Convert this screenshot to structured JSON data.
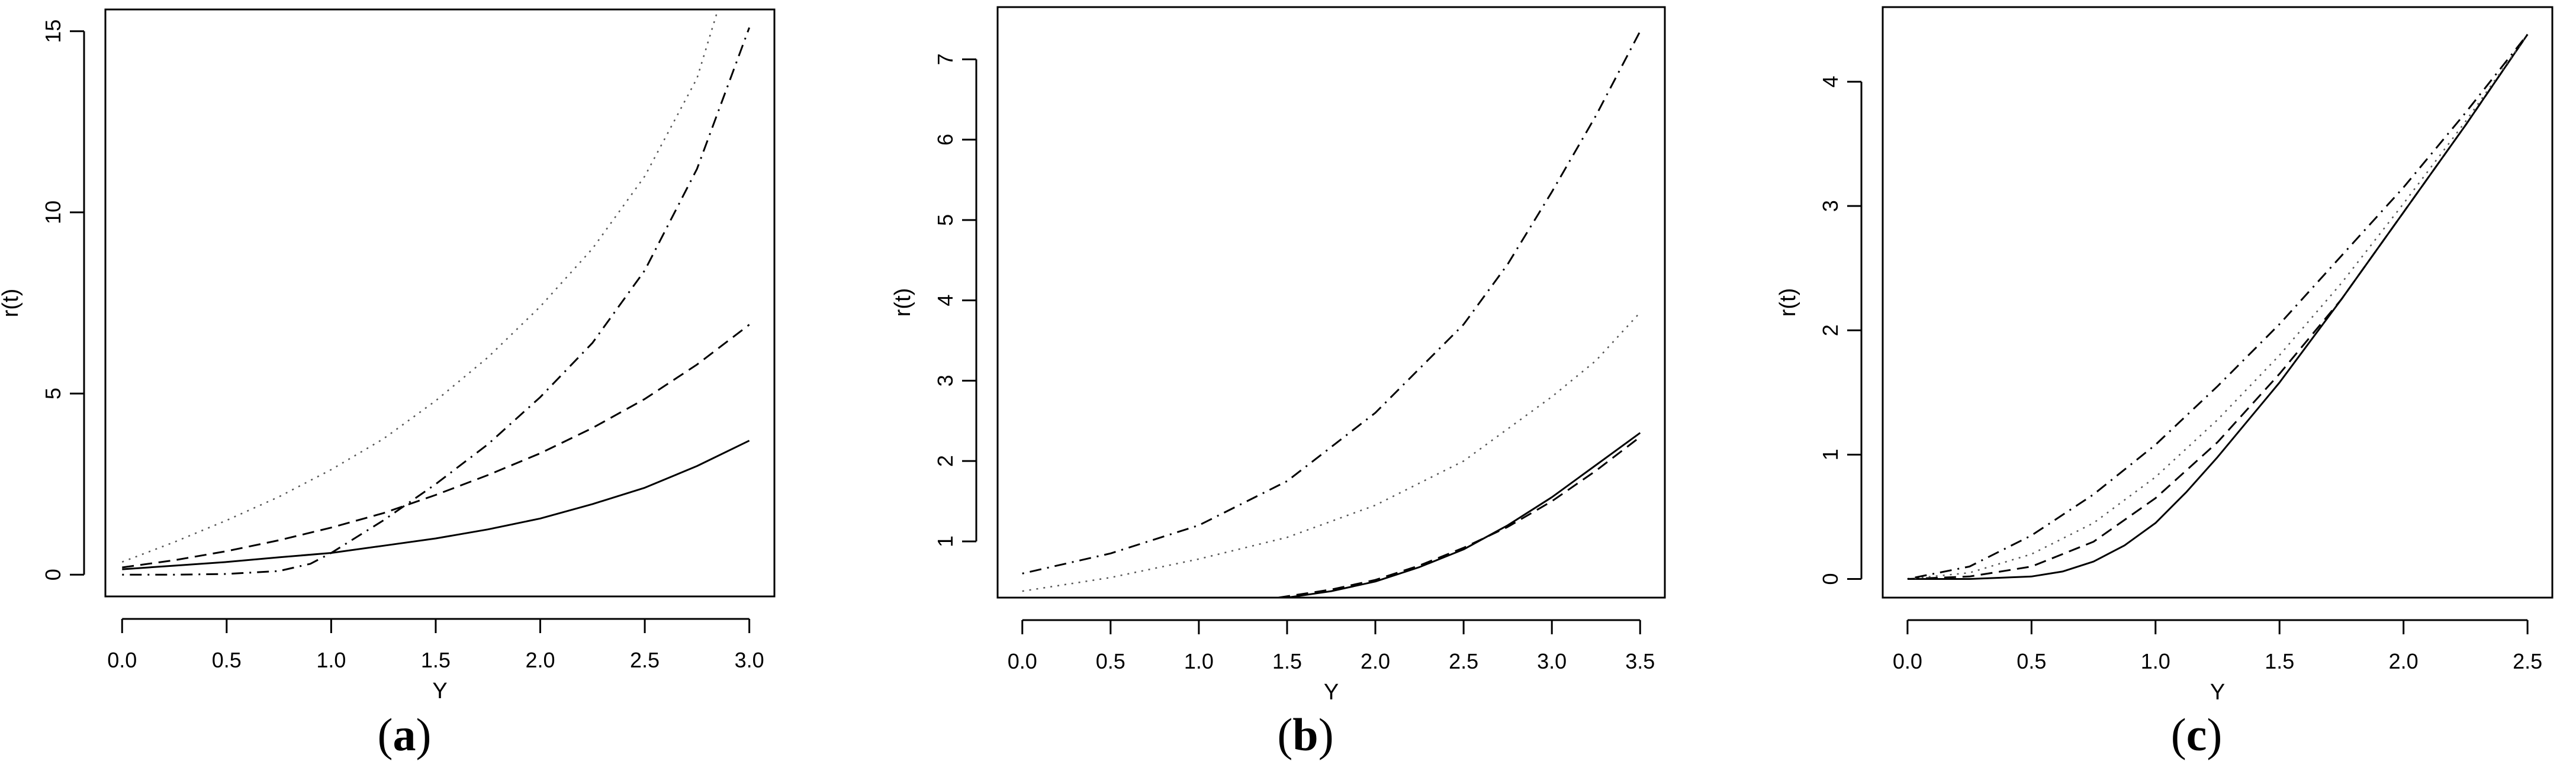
{
  "figure": {
    "panels": [
      {
        "caption_open": "(",
        "caption_letter": "a",
        "caption_close": ")"
      },
      {
        "caption_open": "(",
        "caption_letter": "b",
        "caption_close": ")"
      },
      {
        "caption_open": "(",
        "caption_letter": "c",
        "caption_close": ")"
      }
    ]
  },
  "chart_data": [
    {
      "type": "line",
      "xlabel": "Y",
      "ylabel": "r(t)",
      "xlim": [
        -0.08,
        3.12
      ],
      "ylim": [
        -0.6,
        15.6
      ],
      "xticks": [
        0,
        0.5,
        1,
        1.5,
        2,
        2.5,
        3
      ],
      "xtick_labels": [
        "0.0",
        "0.5",
        "1.0",
        "1.5",
        "2.0",
        "2.5",
        "3.0"
      ],
      "yticks": [
        0,
        5,
        10,
        15
      ],
      "ytick_labels": [
        "0",
        "5",
        "10",
        "15"
      ],
      "series": [
        {
          "style": "solid",
          "x": [
            0,
            0.25,
            0.5,
            0.75,
            1,
            1.25,
            1.5,
            1.75,
            2,
            2.25,
            2.5,
            2.75,
            3
          ],
          "y": [
            0.15,
            0.25,
            0.35,
            0.48,
            0.6,
            0.8,
            1.0,
            1.25,
            1.55,
            1.95,
            2.4,
            3.0,
            3.7
          ]
        },
        {
          "style": "dashed",
          "x": [
            0,
            0.25,
            0.5,
            0.75,
            1,
            1.25,
            1.5,
            1.75,
            2,
            2.25,
            2.5,
            2.75,
            3
          ],
          "y": [
            0.2,
            0.4,
            0.65,
            0.95,
            1.3,
            1.7,
            2.2,
            2.75,
            3.35,
            4.05,
            4.85,
            5.8,
            6.9
          ]
        },
        {
          "style": "dotted",
          "x": [
            0,
            0.25,
            0.5,
            0.75,
            1,
            1.25,
            1.5,
            1.75,
            2,
            2.25,
            2.5,
            2.75,
            2.85
          ],
          "y": [
            0.35,
            0.9,
            1.5,
            2.15,
            2.9,
            3.75,
            4.8,
            6.0,
            7.4,
            9.0,
            11.0,
            13.7,
            15.6
          ]
        },
        {
          "style": "dotdash",
          "x": [
            0,
            0.25,
            0.5,
            0.75,
            0.9,
            1,
            1.25,
            1.5,
            1.75,
            2,
            2.25,
            2.5,
            2.75,
            3
          ],
          "y": [
            0.0,
            0.0,
            0.02,
            0.1,
            0.3,
            0.6,
            1.5,
            2.5,
            3.6,
            4.9,
            6.4,
            8.4,
            11.2,
            15.1
          ]
        }
      ]
    },
    {
      "type": "line",
      "xlabel": "Y",
      "ylabel": "r(t)",
      "xlim": [
        -0.14,
        3.64
      ],
      "ylim": [
        0.3,
        7.65
      ],
      "xticks": [
        0,
        0.5,
        1,
        1.5,
        2,
        2.5,
        3,
        3.5
      ],
      "xtick_labels": [
        "0.0",
        "0.5",
        "1.0",
        "1.5",
        "2.0",
        "2.5",
        "3.0",
        "3.5"
      ],
      "yticks": [
        1,
        2,
        3,
        4,
        5,
        6,
        7
      ],
      "ytick_labels": [
        "1",
        "2",
        "3",
        "4",
        "5",
        "6",
        "7"
      ],
      "series": [
        {
          "style": "solid",
          "x": [
            1.5,
            1.75,
            2,
            2.25,
            2.5,
            2.75,
            3,
            3.25,
            3.5
          ],
          "y": [
            0.3,
            0.38,
            0.5,
            0.68,
            0.9,
            1.2,
            1.55,
            1.95,
            2.35
          ]
        },
        {
          "style": "dashed",
          "x": [
            1.45,
            1.75,
            2,
            2.25,
            2.5,
            2.75,
            3,
            3.25,
            3.5
          ],
          "y": [
            0.3,
            0.4,
            0.52,
            0.7,
            0.92,
            1.18,
            1.5,
            1.88,
            2.3
          ]
        },
        {
          "style": "dotted",
          "x": [
            0,
            0.5,
            1,
            1.5,
            2,
            2.5,
            3,
            3.25,
            3.5
          ],
          "y": [
            0.38,
            0.55,
            0.78,
            1.05,
            1.45,
            2.0,
            2.8,
            3.25,
            3.85
          ]
        },
        {
          "style": "dotdash",
          "x": [
            0,
            0.5,
            1,
            1.5,
            2,
            2.5,
            2.75,
            3,
            3.25,
            3.5
          ],
          "y": [
            0.6,
            0.85,
            1.2,
            1.75,
            2.6,
            3.7,
            4.45,
            5.35,
            6.3,
            7.35
          ]
        }
      ]
    },
    {
      "type": "line",
      "xlabel": "Y",
      "ylabel": "r(t)",
      "xlim": [
        -0.1,
        2.6
      ],
      "ylim": [
        -0.15,
        4.6
      ],
      "xticks": [
        0,
        0.5,
        1,
        1.5,
        2,
        2.5
      ],
      "xtick_labels": [
        "0.0",
        "0.5",
        "1.0",
        "1.5",
        "2.0",
        "2.5"
      ],
      "yticks": [
        0,
        1,
        2,
        3,
        4
      ],
      "ytick_labels": [
        "0",
        "1",
        "2",
        "3",
        "4"
      ],
      "series": [
        {
          "style": "solid",
          "x": [
            0,
            0.25,
            0.5,
            0.625,
            0.75,
            0.875,
            1,
            1.125,
            1.25,
            1.5,
            1.75,
            2,
            2.25,
            2.5
          ],
          "y": [
            0.0,
            0.0,
            0.02,
            0.06,
            0.14,
            0.27,
            0.45,
            0.7,
            0.98,
            1.58,
            2.25,
            2.95,
            3.65,
            4.38
          ]
        },
        {
          "style": "dashed",
          "x": [
            0,
            0.25,
            0.5,
            0.75,
            1,
            1.25,
            1.5,
            1.75,
            2,
            2.25,
            2.5
          ],
          "y": [
            0.0,
            0.02,
            0.1,
            0.3,
            0.65,
            1.1,
            1.65,
            2.25,
            2.95,
            3.65,
            4.38
          ]
        },
        {
          "style": "dotted",
          "x": [
            0,
            0.25,
            0.5,
            0.75,
            1,
            1.25,
            1.5,
            1.75,
            2,
            2.25,
            2.5
          ],
          "y": [
            0.0,
            0.05,
            0.2,
            0.45,
            0.82,
            1.28,
            1.8,
            2.38,
            3.02,
            3.68,
            4.38
          ]
        },
        {
          "style": "dotdash",
          "x": [
            0,
            0.25,
            0.5,
            0.75,
            1,
            1.25,
            1.5,
            1.75,
            2,
            2.25,
            2.5
          ],
          "y": [
            0.0,
            0.1,
            0.35,
            0.68,
            1.08,
            1.55,
            2.05,
            2.6,
            3.15,
            3.75,
            4.38
          ]
        }
      ]
    }
  ]
}
